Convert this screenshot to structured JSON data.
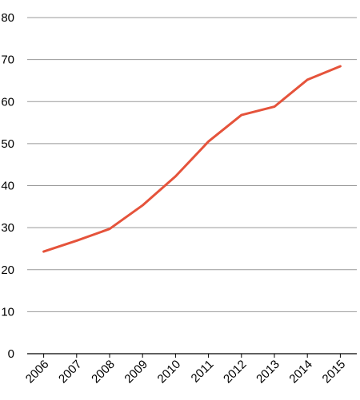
{
  "chart_data": {
    "type": "line",
    "title": "",
    "xlabel": "",
    "ylabel": "",
    "x": [
      "2006",
      "2007",
      "2008",
      "2009",
      "2010",
      "2011",
      "2012",
      "2013",
      "2014",
      "2015"
    ],
    "series": [
      {
        "values": [
          24.3,
          26.9,
          29.7,
          35.3,
          42.2,
          50.5,
          56.8,
          58.8,
          65.2,
          68.4
        ]
      }
    ],
    "ylim": [
      0,
      80
    ],
    "yticks": [
      "0",
      "10",
      "20",
      "30",
      "40",
      "50",
      "60",
      "70",
      "80"
    ],
    "grid": true,
    "legend": "none",
    "colors": {
      "line": "#e5533b",
      "grid": "#999999",
      "axis": "#000000"
    }
  }
}
